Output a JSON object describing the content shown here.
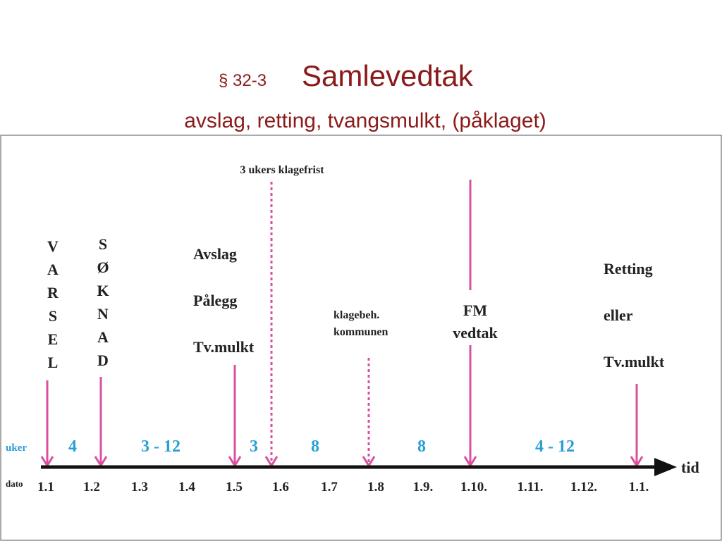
{
  "header": {
    "section": "§ 32-3",
    "title": "Samlevedtak",
    "subtitle": "avslag, retting, tvangsmulkt, (påklaget)"
  },
  "diagram": {
    "varsel": [
      "V",
      "A",
      "R",
      "S",
      "E",
      "L"
    ],
    "soknad": [
      "S",
      "Ø",
      "K",
      "N",
      "A",
      "D"
    ],
    "deadline": "3 ukers klagefrist",
    "decision": [
      "Avslag",
      "Pålegg",
      "Tv.mulkt"
    ],
    "appeal": [
      "klagebeh.",
      "kommunen"
    ],
    "fm": [
      "FM",
      "vedtak"
    ],
    "outcome": [
      "Retting",
      "eller",
      "Tv.mulkt"
    ],
    "weeks_label": "uker",
    "weeks": [
      "4",
      "3 - 12",
      "3",
      "8",
      "8",
      "4 - 12"
    ],
    "time_label": "tid",
    "date_label": "dato",
    "dates": [
      "1.1",
      "1.2",
      "1.3",
      "1.4",
      "1.5",
      "1.6",
      "1.7",
      "1.8",
      "1.9.",
      "1.10.",
      "1.11.",
      "1.12.",
      "1.1."
    ]
  }
}
